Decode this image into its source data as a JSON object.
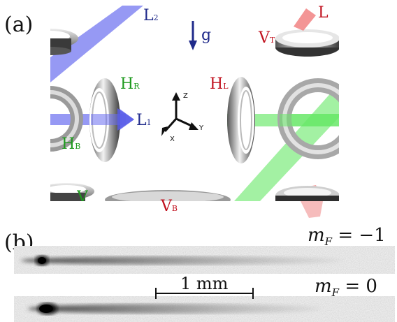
{
  "panel_a": {
    "label": "(a)",
    "labels": {
      "L2": {
        "main": "L",
        "sub": "2"
      },
      "L1": {
        "main": "L",
        "sub": "1"
      },
      "L_top_right": {
        "main": "L"
      },
      "g": {
        "main": "g"
      },
      "VT": {
        "main": "V",
        "sub": "T"
      },
      "VB": {
        "main": "V",
        "sub": "B"
      },
      "V_left_bottom": {
        "main": "V"
      },
      "HR": {
        "main": "H",
        "sub": "R"
      },
      "HL": {
        "main": "H",
        "sub": "L"
      },
      "HB": {
        "main": "H",
        "sub": "B"
      }
    },
    "axes": {
      "z": "Z",
      "y": "Y",
      "x": "X"
    },
    "colors": {
      "blue_beam": "#6a6ef0",
      "green_beam": "#66e866",
      "red_beam": "#f28a8a",
      "coil": "#8a8a8a"
    }
  },
  "panel_b": {
    "label": "(b)",
    "traces": [
      {
        "main": "m",
        "sub": "F",
        "value": "= −1"
      },
      {
        "main": "m",
        "sub": "F",
        "value": "= 0"
      }
    ],
    "scale_bar": {
      "label": "1 mm"
    }
  }
}
